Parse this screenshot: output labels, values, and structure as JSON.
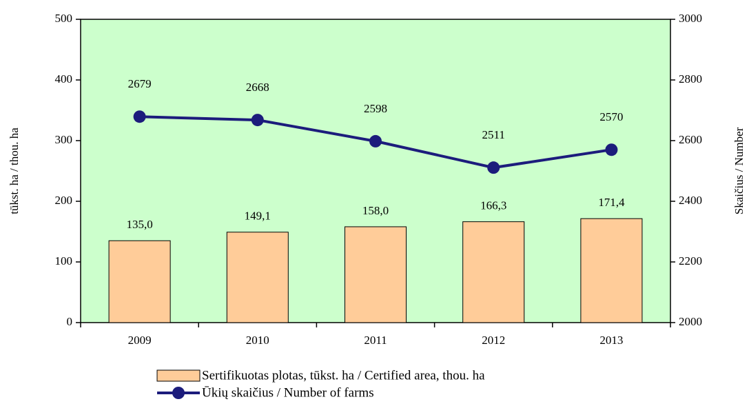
{
  "chart_data": {
    "type": "bar_line",
    "categories": [
      "2009",
      "2010",
      "2011",
      "2012",
      "2013"
    ],
    "ylabel": "tūkst. ha / thou. ha",
    "y2label": "Skaičius / Number",
    "ylim": [
      0,
      500
    ],
    "yticks": [
      0,
      100,
      200,
      300,
      400,
      500
    ],
    "y2lim": [
      2000,
      3000
    ],
    "y2ticks": [
      2000,
      2200,
      2400,
      2600,
      2800,
      3000
    ],
    "background": "#ccffcc",
    "series": [
      {
        "name": "Sertifikuotas plotas, tūkst. ha / Certified area, thou. ha",
        "type": "bar",
        "color": "#ffcc99",
        "values": [
          135.0,
          149.1,
          158.0,
          166.3,
          171.4
        ],
        "value_labels": [
          "135,0",
          "149,1",
          "158,0",
          "166,3",
          "171,4"
        ]
      },
      {
        "name": "Ūkių skaičius / Number of farms",
        "type": "line",
        "axis": "y2",
        "color": "#1c1c7c",
        "values": [
          2679,
          2668,
          2598,
          2511,
          2570
        ]
      }
    ]
  }
}
